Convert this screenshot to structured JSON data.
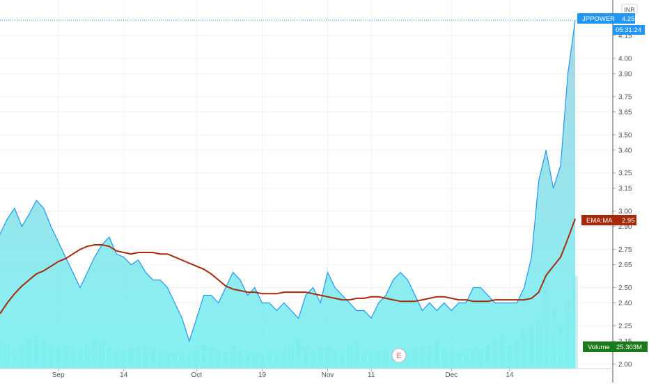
{
  "currency": "INR",
  "colors": {
    "price_line": "#2196f3",
    "area_top": "#9ad0e0",
    "area_bottom": "#6ff0f0",
    "ema_line": "#a52a0a",
    "volume_bar": "#c8ecec",
    "volume_label_bg": "#1b7a1b",
    "grid": "#eef0f4",
    "axis_text": "#50535e"
  },
  "tags": {
    "price": {
      "symbol": "JPPOWER",
      "value": "4.25",
      "countdown": "05:31:24"
    },
    "ema": {
      "name": "EMA:MA",
      "value": "2.95"
    },
    "volume": {
      "name": "Volume",
      "value": "25.303M"
    }
  },
  "earnings_marker": "E",
  "chart_data": {
    "type": "line",
    "y_ticks": [
      2.0,
      2.15,
      2.25,
      2.4,
      2.5,
      2.65,
      2.75,
      2.9,
      3.0,
      3.15,
      3.25,
      3.4,
      3.5,
      3.65,
      3.75,
      3.9,
      4.0,
      4.15
    ],
    "x_tick_labels": [
      {
        "index": 8,
        "label": "Sep"
      },
      {
        "index": 17,
        "label": "14"
      },
      {
        "index": 27,
        "label": "Oct"
      },
      {
        "index": 36,
        "label": "19"
      },
      {
        "index": 45,
        "label": "Nov"
      },
      {
        "index": 51,
        "label": "11"
      },
      {
        "index": 62,
        "label": "Dec"
      },
      {
        "index": 70,
        "label": "14"
      }
    ],
    "series": [
      {
        "name": "JPPOWER",
        "values": [
          2.85,
          2.95,
          3.02,
          2.9,
          2.98,
          3.07,
          3.02,
          2.9,
          2.8,
          2.7,
          2.6,
          2.5,
          2.6,
          2.7,
          2.78,
          2.83,
          2.72,
          2.7,
          2.65,
          2.68,
          2.6,
          2.55,
          2.55,
          2.5,
          2.4,
          2.3,
          2.15,
          2.3,
          2.45,
          2.45,
          2.4,
          2.5,
          2.6,
          2.55,
          2.45,
          2.5,
          2.4,
          2.4,
          2.35,
          2.4,
          2.35,
          2.3,
          2.45,
          2.5,
          2.4,
          2.6,
          2.5,
          2.45,
          2.4,
          2.35,
          2.35,
          2.3,
          2.4,
          2.45,
          2.55,
          2.6,
          2.55,
          2.45,
          2.35,
          2.4,
          2.35,
          2.4,
          2.35,
          2.4,
          2.4,
          2.5,
          2.5,
          2.45,
          2.4,
          2.4,
          2.4,
          2.4,
          2.5,
          2.7,
          3.2,
          3.4,
          3.15,
          3.3,
          3.9,
          4.25
        ]
      },
      {
        "name": "EMA:MA",
        "values": [
          2.33,
          2.4,
          2.46,
          2.51,
          2.55,
          2.59,
          2.61,
          2.64,
          2.67,
          2.69,
          2.72,
          2.75,
          2.77,
          2.78,
          2.78,
          2.77,
          2.74,
          2.73,
          2.72,
          2.73,
          2.73,
          2.73,
          2.72,
          2.72,
          2.7,
          2.68,
          2.66,
          2.64,
          2.62,
          2.59,
          2.55,
          2.51,
          2.49,
          2.48,
          2.47,
          2.47,
          2.46,
          2.46,
          2.46,
          2.47,
          2.47,
          2.47,
          2.47,
          2.46,
          2.45,
          2.44,
          2.43,
          2.42,
          2.42,
          2.43,
          2.43,
          2.44,
          2.44,
          2.43,
          2.42,
          2.41,
          2.41,
          2.41,
          2.42,
          2.43,
          2.44,
          2.44,
          2.43,
          2.42,
          2.42,
          2.41,
          2.41,
          2.41,
          2.42,
          2.42,
          2.42,
          2.42,
          2.42,
          2.43,
          2.47,
          2.58,
          2.64,
          2.7,
          2.82,
          2.95
        ]
      }
    ],
    "volume_relative": [
      0.3,
      0.25,
      0.2,
      0.25,
      0.3,
      0.35,
      0.3,
      0.25,
      0.2,
      0.25,
      0.2,
      0.2,
      0.25,
      0.3,
      0.28,
      0.22,
      0.2,
      0.18,
      0.2,
      0.22,
      0.25,
      0.2,
      0.18,
      0.15,
      0.15,
      0.18,
      0.15,
      0.2,
      0.25,
      0.22,
      0.2,
      0.18,
      0.25,
      0.2,
      0.18,
      0.15,
      0.15,
      0.2,
      0.18,
      0.2,
      0.25,
      0.3,
      0.22,
      0.18,
      0.2,
      0.22,
      0.2,
      0.18,
      0.25,
      0.3,
      0.2,
      0.18,
      0.2,
      0.18,
      0.15,
      0.2,
      0.18,
      0.2,
      0.22,
      0.25,
      0.3,
      0.2,
      0.18,
      0.15,
      0.2,
      0.22,
      0.2,
      0.25,
      0.3,
      0.35,
      0.25,
      0.3,
      0.4,
      0.45,
      0.5,
      1.0,
      0.6,
      0.45,
      0.7,
      0.95
    ]
  }
}
